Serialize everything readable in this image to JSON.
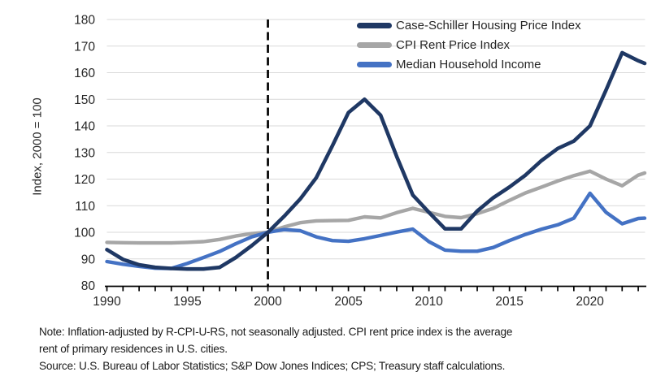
{
  "figure": {
    "y_axis_title": "Index, 2000 = 100"
  },
  "notes": {
    "note_line1": "Note: Inflation-adjusted by R-CPI-U-RS, not seasonally adjusted. CPI rent price index is the average",
    "note_line2": "rent of primary residences in U.S. cities.",
    "source_line": "Source: U.S. Bureau of Labor Statistics; S&P Dow Jones Indices; CPS; Treasury staff calculations."
  },
  "chart_data": {
    "type": "line",
    "title": "",
    "xlabel": "",
    "ylabel": "Index, 2000 = 100",
    "x_range": [
      1990,
      2023.4
    ],
    "ylim": [
      80,
      180
    ],
    "y_ticks": [
      80,
      90,
      100,
      110,
      120,
      130,
      140,
      150,
      160,
      170,
      180
    ],
    "x_major_ticks": [
      1990,
      1995,
      2000,
      2005,
      2010,
      2015,
      2020
    ],
    "x_minor_tick_step": 1,
    "grid": "horizontal",
    "grid_color": "#D9D9D9",
    "axis_color": "#000000",
    "tick_label_color": "#262626",
    "reference_line": {
      "x": 2000,
      "style": "dashed",
      "color": "#000000"
    },
    "legend_position": "top-inside",
    "x": [
      1990,
      1991,
      1992,
      1993,
      1994,
      1995,
      1996,
      1997,
      1998,
      1999,
      2000,
      2001,
      2002,
      2003,
      2004,
      2005,
      2006,
      2007,
      2008,
      2009,
      2010,
      2011,
      2012,
      2013,
      2014,
      2015,
      2016,
      2017,
      2018,
      2019,
      2020,
      2021,
      2022,
      2023,
      2023.4
    ],
    "series": [
      {
        "name": "Case-Schiller Housing Price Index",
        "color": "#1F3864",
        "values": [
          93.5,
          89.8,
          87.8,
          86.8,
          86.4,
          86.2,
          86.2,
          86.8,
          90.5,
          95,
          100,
          106,
          112.5,
          120.5,
          132.5,
          145,
          150,
          144,
          128.5,
          114,
          107.5,
          101.3,
          101.3,
          108,
          113,
          117,
          121.5,
          127,
          131.5,
          134.3,
          140,
          153.5,
          167.5,
          164.5,
          163.5
        ]
      },
      {
        "name": "CPI Rent Price Index",
        "color": "#A6A6A6",
        "values": [
          96.2,
          96.1,
          96,
          96,
          96,
          96.2,
          96.5,
          97.3,
          98.6,
          99.5,
          100,
          102,
          103.6,
          104.3,
          104.4,
          104.5,
          105.8,
          105.4,
          107.4,
          109,
          107.5,
          106,
          105.5,
          107,
          109,
          112,
          114.8,
          117,
          119.3,
          121.3,
          123,
          120,
          117.5,
          121.5,
          122.3
        ]
      },
      {
        "name": "Median Household Income",
        "color": "#4472C4",
        "values": [
          89,
          88,
          87.2,
          86.5,
          86.4,
          88.3,
          90.5,
          92.8,
          95.7,
          98.3,
          100,
          101,
          100.6,
          98.3,
          96.9,
          96.6,
          97.6,
          98.8,
          100.1,
          101.2,
          96.5,
          93.3,
          92.9,
          92.9,
          94.3,
          96.9,
          99.2,
          101.2,
          102.8,
          105.3,
          114.7,
          107.5,
          103.2,
          105.2,
          105.3
        ]
      }
    ]
  }
}
